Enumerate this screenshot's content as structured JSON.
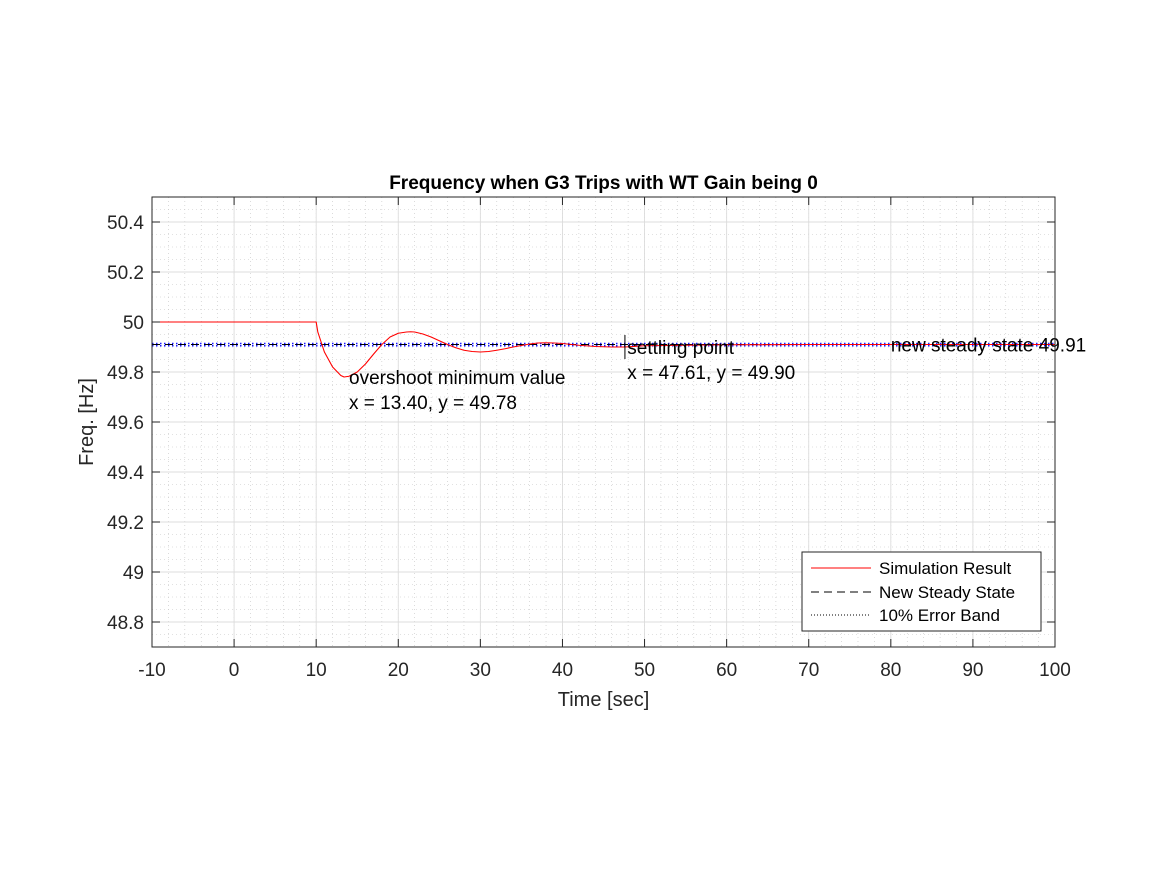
{
  "chart_data": {
    "type": "line",
    "title": "Frequency when G3 Trips with WT Gain being 0",
    "xlabel": "Time [sec]",
    "ylabel": "Freq. [Hz]",
    "xlim": [
      -10,
      100
    ],
    "ylim": [
      48.7,
      50.5
    ],
    "xticks": [
      -10,
      0,
      10,
      20,
      30,
      40,
      50,
      60,
      70,
      80,
      90,
      100
    ],
    "xtick_labels": [
      "-10",
      "0",
      "10",
      "20",
      "30",
      "40",
      "50",
      "60",
      "70",
      "80",
      "90",
      "100"
    ],
    "yticks": [
      48.8,
      49,
      49.2,
      49.4,
      49.6,
      49.8,
      50,
      50.2,
      50.4
    ],
    "ytick_labels": [
      "48.8",
      "49",
      "49.2",
      "49.4",
      "49.6",
      "49.8",
      "50",
      "50.2",
      "50.4"
    ],
    "grid": true,
    "minor_grid": true,
    "legend_position": "bottom-right",
    "series": [
      {
        "name": "Simulation Result",
        "color": "#ff0000",
        "style": "solid",
        "x": [
          -10,
          10,
          10.2,
          11,
          12,
          13,
          13.4,
          14,
          15,
          16,
          17,
          18,
          19,
          20,
          21,
          21.5,
          22,
          23,
          24,
          25,
          26,
          27,
          28,
          29,
          30,
          31,
          32,
          33,
          34,
          35,
          36,
          37,
          38,
          39,
          40,
          42,
          44,
          46,
          47.61,
          50,
          60,
          70,
          80,
          90,
          100
        ],
        "y": [
          50.0,
          50.0,
          49.96,
          49.88,
          49.82,
          49.786,
          49.78,
          49.783,
          49.8,
          49.832,
          49.872,
          49.91,
          49.94,
          49.955,
          49.96,
          49.961,
          49.96,
          49.952,
          49.94,
          49.925,
          49.91,
          49.897,
          49.887,
          49.882,
          49.88,
          49.882,
          49.887,
          49.893,
          49.9,
          49.906,
          49.912,
          49.916,
          49.917,
          49.916,
          49.914,
          49.907,
          49.902,
          49.9,
          49.9,
          49.905,
          49.909,
          49.91,
          49.91,
          49.91,
          49.91
        ]
      },
      {
        "name": "New Steady State",
        "color": "#000000",
        "style": "dashed",
        "x": [
          -10,
          100
        ],
        "y": [
          49.91,
          49.91
        ]
      },
      {
        "name": "10% Error Band",
        "color": "#1a1aff",
        "style": "dotted",
        "x": [
          -10,
          100
        ],
        "y": [
          49.905,
          49.905
        ]
      },
      {
        "name": "10% Error Band",
        "color": "#1a1aff",
        "style": "dotted",
        "x": [
          -10,
          100
        ],
        "y": [
          49.914,
          49.914
        ]
      }
    ],
    "annotations": [
      {
        "lines": [
          "overshoot minimum value",
          "x = 13.40, y = 49.78"
        ],
        "x": 14.0,
        "y": 49.78
      },
      {
        "lines": [
          "settling point",
          "x = 47.61, y = 49.90"
        ],
        "x": 47.9,
        "y": 49.9
      },
      {
        "lines": [
          "new steady state 49.91"
        ],
        "x": 80.0,
        "y": 49.91
      }
    ],
    "markers": [
      {
        "x": 47.61,
        "y": 49.9
      }
    ],
    "legend": [
      {
        "label": "Simulation Result",
        "color": "#ff0000",
        "style": "solid"
      },
      {
        "label": "New Steady State",
        "color": "#000000",
        "style": "dashed"
      },
      {
        "label": "10% Error Band",
        "color": "#000000",
        "style": "dotted"
      }
    ]
  }
}
